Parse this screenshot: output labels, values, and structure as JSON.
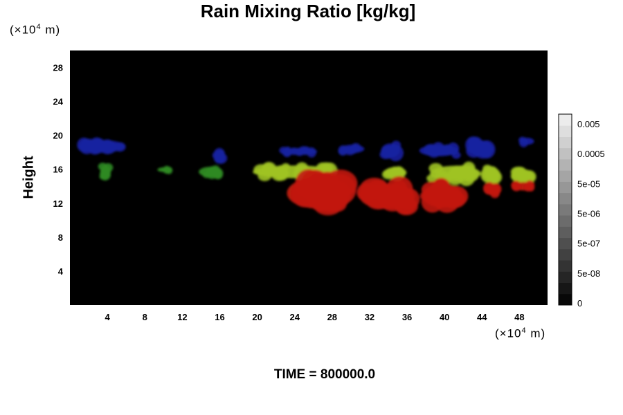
{
  "chart_data": {
    "type": "heatmap",
    "title": "Rain Mixing Ratio [kg/kg]",
    "ylabel": "Height",
    "xlabel": "",
    "x_unit": "(×10⁴ m)",
    "y_unit": "(×10⁴ m)",
    "x_unit_text": {
      "prefix": "(×10",
      "exp": "4",
      "suffix": " m)"
    },
    "y_unit_text": {
      "prefix": "(×10",
      "exp": "4",
      "suffix": " m)"
    },
    "xlim": [
      0,
      51
    ],
    "ylim": [
      0,
      30
    ],
    "x_ticks": [
      4,
      8,
      12,
      16,
      20,
      24,
      28,
      32,
      36,
      40,
      44,
      48
    ],
    "y_ticks": [
      4,
      8,
      12,
      16,
      20,
      24,
      28
    ],
    "background": "#000000",
    "colorbar": {
      "labels": [
        "0.005",
        "0.0005",
        "5e-05",
        "5e-06",
        "5e-07",
        "5e-08",
        "0"
      ],
      "levels": 17
    },
    "regions": [
      {
        "color": "#1820a0",
        "x": [
          0.8,
          6.0
        ],
        "y": [
          17.8,
          19.6
        ]
      },
      {
        "color": "#1820a0",
        "x": [
          15.3,
          16.6
        ],
        "y": [
          16.5,
          18.4
        ]
      },
      {
        "color": "#1820a0",
        "x": [
          22.5,
          26.5
        ],
        "y": [
          17.6,
          18.6
        ]
      },
      {
        "color": "#1820a0",
        "x": [
          28.8,
          31.5
        ],
        "y": [
          17.8,
          19.0
        ]
      },
      {
        "color": "#1820a0",
        "x": [
          33.2,
          35.3
        ],
        "y": [
          17.3,
          19.2
        ]
      },
      {
        "color": "#1820a0",
        "x": [
          37.2,
          41.6
        ],
        "y": [
          17.4,
          19.0
        ]
      },
      {
        "color": "#1820a0",
        "x": [
          42.5,
          45.2
        ],
        "y": [
          17.4,
          19.6
        ]
      },
      {
        "color": "#1820a0",
        "x": [
          48.0,
          49.6
        ],
        "y": [
          18.8,
          19.8
        ]
      },
      {
        "color": "#2e8a22",
        "x": [
          3.2,
          4.4
        ],
        "y": [
          14.8,
          16.6
        ]
      },
      {
        "color": "#2e8a22",
        "x": [
          9.3,
          11.0
        ],
        "y": [
          15.6,
          16.3
        ]
      },
      {
        "color": "#2e8a22",
        "x": [
          13.7,
          16.2
        ],
        "y": [
          15.0,
          16.4
        ]
      },
      {
        "color": "#9ec322",
        "x": [
          19.3,
          28.6
        ],
        "y": [
          14.8,
          16.6
        ]
      },
      {
        "color": "#9ec322",
        "x": [
          33.5,
          36.0
        ],
        "y": [
          14.8,
          16.4
        ]
      },
      {
        "color": "#9ec322",
        "x": [
          38.3,
          44.0
        ],
        "y": [
          14.4,
          16.6
        ]
      },
      {
        "color": "#9ec322",
        "x": [
          44.0,
          46.0
        ],
        "y": [
          14.4,
          16.4
        ]
      },
      {
        "color": "#9ec322",
        "x": [
          47.0,
          49.6
        ],
        "y": [
          14.2,
          16.2
        ]
      },
      {
        "color": "#c21a12",
        "x": [
          23.0,
          30.0
        ],
        "y": [
          11.0,
          15.4
        ]
      },
      {
        "color": "#c21a12",
        "x": [
          30.8,
          37.0
        ],
        "y": [
          11.0,
          14.6
        ]
      },
      {
        "color": "#c21a12",
        "x": [
          37.5,
          42.0
        ],
        "y": [
          11.2,
          14.6
        ]
      },
      {
        "color": "#c21a12",
        "x": [
          44.2,
          46.0
        ],
        "y": [
          12.8,
          14.4
        ]
      },
      {
        "color": "#c21a12",
        "x": [
          47.3,
          49.6
        ],
        "y": [
          13.4,
          14.6
        ]
      }
    ]
  },
  "time_label": "TIME = 800000.0"
}
